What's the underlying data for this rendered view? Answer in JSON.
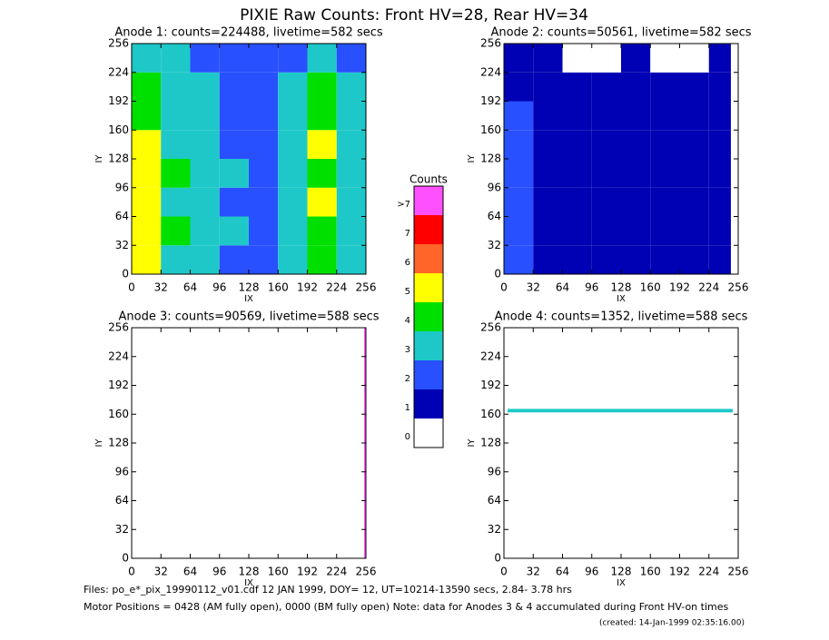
{
  "title": "PIXIE Raw Counts:  Front HV=28, Rear HV=34",
  "colorbar": {
    "title": "Counts",
    "ticks": [
      0,
      1,
      2,
      3,
      4,
      5,
      6,
      7,
      {
        "value": 8,
        "label": ">7"
      }
    ],
    "colors": [
      "#ffffff",
      "#0000b4",
      "#2850ff",
      "#1ec8c8",
      "#00e000",
      "#ffff00",
      "#ff6428",
      "#ff0000",
      "#ff50ff"
    ]
  },
  "footer": {
    "files": "Files: po_e*_pix_19990112_v01.cdf    12 JAN 1999, DOY= 12, UT=10214-13590 secs,  2.84- 3.78 hrs",
    "motor": "Motor Positions = 0428 (AM fully open), 0000 (BM fully open)    Note: data for Anodes 3 & 4 accumulated during Front HV-on times",
    "created": "(created: 14-Jan-1999 02:35:16.00)"
  },
  "chart_data": [
    {
      "type": "heatmap",
      "title": "Anode 1: counts=224488, livetime=582 secs",
      "xlabel": "IX",
      "ylabel": "IY",
      "xlim": [
        0,
        256
      ],
      "ylim": [
        0,
        256
      ],
      "xticks": [
        0,
        32,
        64,
        96,
        128,
        160,
        192,
        224,
        256
      ],
      "yticks": [
        0,
        32,
        64,
        96,
        128,
        160,
        192,
        224,
        256
      ],
      "xbins": [
        0,
        32,
        64,
        96,
        128,
        160,
        192,
        224,
        256
      ],
      "ybins": [
        0,
        32,
        64,
        96,
        128,
        160,
        192,
        224,
        256
      ],
      "z": [
        [
          5,
          3,
          3,
          2,
          2,
          3,
          4,
          3
        ],
        [
          5,
          4,
          3,
          3,
          2,
          3,
          4,
          3
        ],
        [
          5,
          3,
          3,
          2,
          2,
          3,
          5,
          3
        ],
        [
          5,
          4,
          3,
          3,
          2,
          3,
          4,
          3
        ],
        [
          5,
          3,
          3,
          2,
          2,
          3,
          5,
          3
        ],
        [
          4,
          3,
          3,
          2,
          2,
          3,
          4,
          3
        ],
        [
          4,
          3,
          3,
          2,
          2,
          3,
          4,
          3
        ],
        [
          3,
          3,
          2,
          2,
          2,
          2,
          3,
          2
        ]
      ]
    },
    {
      "type": "heatmap",
      "title": "Anode 2: counts=50561, livetime=582 secs",
      "xlabel": "IX",
      "ylabel": "IY",
      "xlim": [
        0,
        256
      ],
      "ylim": [
        0,
        256
      ],
      "xticks": [
        0,
        32,
        64,
        96,
        128,
        160,
        192,
        224,
        256
      ],
      "yticks": [
        0,
        32,
        64,
        96,
        128,
        160,
        192,
        224,
        256
      ],
      "xbins": [
        0,
        32,
        64,
        96,
        128,
        160,
        192,
        224,
        248
      ],
      "ybins": [
        0,
        32,
        64,
        96,
        128,
        160,
        192,
        224,
        256
      ],
      "z": [
        [
          2,
          1,
          1,
          1,
          1,
          1,
          1,
          1
        ],
        [
          2,
          1,
          1,
          1,
          1,
          1,
          1,
          1
        ],
        [
          2,
          1,
          1,
          1,
          1,
          1,
          1,
          1
        ],
        [
          2,
          1,
          1,
          1,
          1,
          1,
          1,
          1
        ],
        [
          2,
          1,
          1,
          1,
          1,
          1,
          1,
          1
        ],
        [
          2,
          1,
          1,
          1,
          1,
          1,
          1,
          1
        ],
        [
          1,
          1,
          1,
          1,
          1,
          1,
          1,
          1
        ],
        [
          1,
          1,
          0,
          0,
          1,
          0,
          0,
          1
        ]
      ]
    },
    {
      "type": "heatmap",
      "title": "Anode 3: counts=90569, livetime=588 secs",
      "xlabel": "IX",
      "ylabel": "IY",
      "xlim": [
        0,
        256
      ],
      "ylim": [
        0,
        256
      ],
      "xticks": [
        0,
        32,
        64,
        96,
        128,
        160,
        192,
        224,
        256
      ],
      "yticks": [
        0,
        32,
        64,
        96,
        128,
        160,
        192,
        224,
        256
      ],
      "xbins": [
        0,
        254,
        256
      ],
      "ybins": [
        0,
        256
      ],
      "z": [
        [
          0,
          8
        ]
      ]
    },
    {
      "type": "heatmap",
      "title": "Anode 4: counts=1352, livetime=588 secs",
      "xlabel": "IX",
      "ylabel": "IY",
      "xlim": [
        0,
        256
      ],
      "ylim": [
        0,
        256
      ],
      "xticks": [
        0,
        32,
        64,
        96,
        128,
        160,
        192,
        224,
        256
      ],
      "yticks": [
        0,
        32,
        64,
        96,
        128,
        160,
        192,
        224,
        256
      ],
      "xbins": [
        4,
        250
      ],
      "ybins": [
        0,
        162,
        166,
        256
      ],
      "z": [
        [
          0
        ],
        [
          3
        ],
        [
          0
        ]
      ]
    }
  ]
}
